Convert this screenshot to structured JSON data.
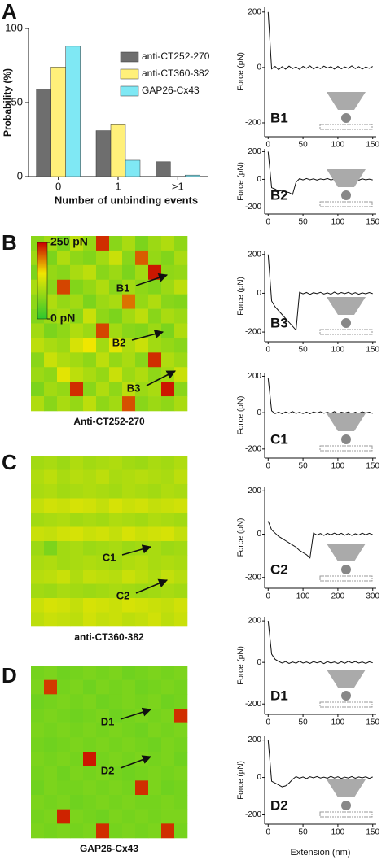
{
  "chart_data": [
    {
      "type": "bar",
      "panel": "A",
      "ylabel": "Probability (%)",
      "xlabel": "Number of unbinding events",
      "categories": [
        "0",
        "1",
        ">1"
      ],
      "ylim": [
        0,
        100
      ],
      "yticks": [
        0,
        50,
        100
      ],
      "series": [
        {
          "name": "anti-CT252-270",
          "color": "#6e6e6e",
          "values": [
            59,
            31,
            10
          ]
        },
        {
          "name": "anti-CT360-382",
          "color": "#fff07a",
          "values": [
            74,
            35,
            0
          ]
        },
        {
          "name": "GAP26-Cx43",
          "color": "#7fe8f4",
          "values": [
            88,
            11,
            1
          ]
        }
      ]
    },
    {
      "type": "heatmap",
      "panel": "B",
      "title": "Anti-CT252-270",
      "zlim": [
        0,
        250
      ],
      "colorbar": true,
      "zticks": [
        {
          "value": 250,
          "label": "250 pN"
        },
        {
          "value": 0,
          "label": "0 pN"
        }
      ],
      "annotations": [
        "B1",
        "B2",
        "B3"
      ],
      "z": [
        [
          70,
          90,
          60,
          110,
          80,
          230,
          70,
          95,
          60,
          85,
          100,
          75
        ],
        [
          85,
          60,
          100,
          75,
          65,
          90,
          120,
          70,
          210,
          80,
          65,
          95
        ],
        [
          60,
          80,
          70,
          95,
          110,
          70,
          85,
          60,
          90,
          240,
          75,
          80
        ],
        [
          95,
          70,
          220,
          65,
          80,
          100,
          70,
          90,
          75,
          65,
          85,
          110
        ],
        [
          75,
          100,
          80,
          90,
          60,
          85,
          95,
          200,
          80,
          100,
          70,
          65
        ],
        [
          65,
          85,
          95,
          70,
          120,
          75,
          60,
          90,
          110,
          70,
          95,
          85
        ],
        [
          90,
          60,
          75,
          100,
          85,
          220,
          90,
          70,
          65,
          85,
          60,
          100
        ],
        [
          110,
          95,
          85,
          130,
          150,
          90,
          140,
          100,
          120,
          90,
          80,
          70
        ],
        [
          70,
          120,
          100,
          90,
          75,
          110,
          80,
          95,
          70,
          230,
          100,
          85
        ],
        [
          85,
          75,
          140,
          110,
          95,
          80,
          120,
          85,
          100,
          75,
          90,
          120
        ],
        [
          60,
          90,
          80,
          230,
          70,
          100,
          75,
          110,
          85,
          95,
          240,
          70
        ],
        [
          100,
          70,
          95,
          80,
          110,
          75,
          90,
          215,
          70,
          85,
          75,
          95
        ]
      ]
    },
    {
      "type": "heatmap",
      "panel": "C",
      "title": "anti-CT360-382",
      "zlim": [
        0,
        250
      ],
      "colorbar": false,
      "annotations": [
        "C1",
        "C2"
      ],
      "z": [
        [
          90,
          95,
          85,
          100,
          90,
          95,
          100,
          90,
          85,
          95,
          90,
          100
        ],
        [
          100,
          110,
          95,
          105,
          100,
          110,
          95,
          100,
          105,
          100,
          95,
          110
        ],
        [
          95,
          100,
          90,
          95,
          100,
          95,
          90,
          100,
          95,
          90,
          100,
          95
        ],
        [
          115,
          125,
          120,
          130,
          125,
          115,
          130,
          120,
          125,
          115,
          120,
          125
        ],
        [
          90,
          95,
          100,
          90,
          95,
          90,
          100,
          95,
          90,
          100,
          95,
          90
        ],
        [
          120,
          115,
          125,
          130,
          120,
          125,
          115,
          130,
          120,
          125,
          130,
          115
        ],
        [
          85,
          60,
          90,
          95,
          85,
          90,
          95,
          85,
          90,
          95,
          85,
          90
        ],
        [
          95,
          100,
          90,
          95,
          100,
          95,
          90,
          100,
          105,
          95,
          100,
          95
        ],
        [
          105,
          110,
          120,
          100,
          115,
          110,
          105,
          120,
          110,
          100,
          115,
          105
        ],
        [
          90,
          85,
          95,
          90,
          85,
          90,
          95,
          90,
          85,
          90,
          95,
          90
        ],
        [
          120,
          130,
          125,
          115,
          130,
          125,
          120,
          130,
          125,
          120,
          115,
          125
        ],
        [
          110,
          120,
          115,
          110,
          125,
          115,
          120,
          110,
          115,
          125,
          110,
          120
        ]
      ]
    },
    {
      "type": "heatmap",
      "panel": "D",
      "title": "GAP26-Cx43",
      "zlim": [
        0,
        250
      ],
      "colorbar": false,
      "annotations": [
        "D1",
        "D2"
      ],
      "z": [
        [
          55,
          60,
          50,
          55,
          60,
          55,
          60,
          50,
          55,
          60,
          55,
          60
        ],
        [
          60,
          225,
          55,
          60,
          50,
          60,
          55,
          60,
          50,
          55,
          60,
          55
        ],
        [
          50,
          55,
          60,
          55,
          60,
          50,
          55,
          60,
          55,
          60,
          50,
          55
        ],
        [
          55,
          60,
          55,
          50,
          55,
          60,
          50,
          55,
          60,
          55,
          60,
          230
        ],
        [
          60,
          55,
          60,
          55,
          60,
          55,
          60,
          55,
          50,
          60,
          55,
          60
        ],
        [
          55,
          50,
          55,
          60,
          55,
          60,
          55,
          60,
          55,
          50,
          60,
          55
        ],
        [
          60,
          55,
          60,
          55,
          240,
          55,
          60,
          55,
          60,
          55,
          60,
          50
        ],
        [
          55,
          60,
          50,
          60,
          55,
          60,
          55,
          50,
          55,
          60,
          55,
          60
        ],
        [
          50,
          60,
          55,
          55,
          60,
          55,
          60,
          55,
          230,
          60,
          50,
          55
        ],
        [
          60,
          55,
          60,
          50,
          55,
          60,
          55,
          60,
          55,
          55,
          60,
          55
        ],
        [
          55,
          60,
          235,
          60,
          55,
          50,
          60,
          55,
          60,
          55,
          60,
          60
        ],
        [
          60,
          55,
          60,
          55,
          60,
          230,
          55,
          60,
          55,
          60,
          230,
          55
        ]
      ]
    },
    {
      "type": "line",
      "label": "B1",
      "ylabel": "Force (pN)",
      "xlim": [
        -5,
        155
      ],
      "xticks": [
        0,
        50,
        100,
        150
      ],
      "ylim": [
        -250,
        220
      ],
      "yticks": [
        -200,
        0,
        200
      ],
      "color": "#111",
      "x": [
        0,
        5,
        10,
        15,
        20,
        25,
        30,
        35,
        40,
        45,
        50,
        55,
        60,
        65,
        70,
        75,
        80,
        85,
        90,
        95,
        100,
        105,
        110,
        115,
        120,
        125,
        130,
        135,
        140,
        145,
        150
      ],
      "values": [
        200,
        -5,
        4,
        -8,
        3,
        -6,
        5,
        -4,
        2,
        -7,
        4,
        -3,
        6,
        -5,
        2,
        -4,
        5,
        -2,
        3,
        -6,
        4,
        -5,
        2,
        -3,
        6,
        -4,
        3,
        -6,
        2,
        -3,
        4
      ]
    },
    {
      "type": "line",
      "label": "B2",
      "ylabel": "Force (pN)",
      "xlim": [
        -5,
        155
      ],
      "xticks": [
        0,
        50,
        100,
        150
      ],
      "ylim": [
        -250,
        220
      ],
      "yticks": [
        -200,
        0,
        200
      ],
      "color": "#111",
      "x": [
        0,
        5,
        10,
        15,
        20,
        25,
        30,
        35,
        40,
        45,
        50,
        55,
        60,
        65,
        70,
        75,
        80,
        85,
        90,
        95,
        100,
        105,
        110,
        115,
        120,
        125,
        130,
        135,
        140,
        145,
        150
      ],
      "values": [
        200,
        -60,
        -70,
        -85,
        -80,
        -90,
        -95,
        -110,
        -20,
        5,
        -4,
        6,
        -3,
        4,
        -5,
        3,
        -2,
        6,
        -4,
        2,
        -5,
        4,
        -3,
        5,
        -2,
        3,
        -6,
        4,
        -3,
        2,
        -4
      ]
    },
    {
      "type": "line",
      "label": "B3",
      "ylabel": "Force (pN)",
      "xlim": [
        -5,
        155
      ],
      "xticks": [
        0,
        50,
        100,
        150
      ],
      "ylim": [
        -250,
        220
      ],
      "yticks": [
        -200,
        0,
        200
      ],
      "color": "#111",
      "x": [
        0,
        5,
        10,
        15,
        20,
        25,
        30,
        35,
        40,
        45,
        50,
        55,
        60,
        65,
        70,
        75,
        80,
        85,
        90,
        95,
        100,
        105,
        110,
        115,
        120,
        125,
        130,
        135,
        140,
        145,
        150
      ],
      "values": [
        200,
        -40,
        -70,
        -90,
        -110,
        -130,
        -150,
        -170,
        -190,
        5,
        -3,
        4,
        -6,
        3,
        -2,
        5,
        -4,
        2,
        -5,
        6,
        -3,
        4,
        -2,
        5,
        -4,
        3,
        -5,
        2,
        -3,
        4,
        -2
      ]
    },
    {
      "type": "line",
      "label": "C1",
      "ylabel": "Force (pN)",
      "xlim": [
        -5,
        155
      ],
      "xticks": [
        0,
        50,
        100,
        150
      ],
      "ylim": [
        -250,
        220
      ],
      "yticks": [
        -200,
        0,
        200
      ],
      "color": "#111",
      "x": [
        0,
        5,
        10,
        15,
        20,
        25,
        30,
        35,
        40,
        45,
        50,
        55,
        60,
        65,
        70,
        75,
        80,
        85,
        90,
        95,
        100,
        105,
        110,
        115,
        120,
        125,
        130,
        135,
        140,
        145,
        150
      ],
      "values": [
        190,
        10,
        -5,
        3,
        -6,
        4,
        -3,
        6,
        -4,
        2,
        -5,
        3,
        -6,
        4,
        -2,
        5,
        -3,
        2,
        -4,
        6,
        -5,
        3,
        -2,
        4,
        -6,
        3,
        -4,
        5,
        -2,
        3,
        -4
      ]
    },
    {
      "type": "line",
      "label": "C2",
      "ylabel": "Force (pN)",
      "xlim": [
        -10,
        310
      ],
      "xticks": [
        0,
        100,
        200,
        300
      ],
      "ylim": [
        -250,
        220
      ],
      "yticks": [
        -200,
        0,
        200
      ],
      "color": "#111",
      "x": [
        0,
        10,
        20,
        30,
        40,
        50,
        60,
        70,
        80,
        90,
        100,
        110,
        120,
        130,
        140,
        150,
        160,
        170,
        180,
        190,
        200,
        210,
        220,
        230,
        240,
        250,
        260,
        270,
        280,
        290,
        300
      ],
      "values": [
        60,
        20,
        5,
        -10,
        -20,
        -30,
        -40,
        -50,
        -60,
        -75,
        -85,
        -95,
        -110,
        5,
        -4,
        3,
        -6,
        4,
        -3,
        5,
        -2,
        4,
        -5,
        3,
        -6,
        2,
        -4,
        5,
        -3,
        4,
        -2
      ]
    },
    {
      "type": "line",
      "label": "D1",
      "ylabel": "Force (pN)",
      "xlim": [
        -5,
        155
      ],
      "xticks": [
        0,
        50,
        100,
        150
      ],
      "ylim": [
        -250,
        220
      ],
      "yticks": [
        -200,
        0,
        200
      ],
      "color": "#111",
      "x": [
        0,
        5,
        10,
        15,
        20,
        25,
        30,
        35,
        40,
        45,
        50,
        55,
        60,
        65,
        70,
        75,
        80,
        85,
        90,
        95,
        100,
        105,
        110,
        115,
        120,
        125,
        130,
        135,
        140,
        145,
        150
      ],
      "values": [
        200,
        40,
        15,
        5,
        -3,
        4,
        -5,
        2,
        -4,
        6,
        -3,
        2,
        -5,
        4,
        -2,
        3,
        -6,
        4,
        -3,
        2,
        -5,
        3,
        -4,
        5,
        -2,
        4,
        -3,
        2,
        -5,
        3,
        -2
      ]
    },
    {
      "type": "line",
      "label": "D2",
      "ylabel": "Force (pN)",
      "xlabel": "Extension (nm)",
      "xlim": [
        -5,
        155
      ],
      "xticks": [
        0,
        50,
        100,
        150
      ],
      "ylim": [
        -250,
        220
      ],
      "yticks": [
        -200,
        0,
        200
      ],
      "color": "#111",
      "x": [
        0,
        5,
        10,
        15,
        20,
        25,
        30,
        35,
        40,
        45,
        50,
        55,
        60,
        65,
        70,
        75,
        80,
        85,
        90,
        95,
        100,
        105,
        110,
        115,
        120,
        125,
        130,
        135,
        140,
        145,
        150
      ],
      "values": [
        200,
        -20,
        -30,
        -40,
        -50,
        -45,
        -30,
        -10,
        5,
        -4,
        3,
        -6,
        4,
        -2,
        5,
        -3,
        2,
        -4,
        6,
        -3,
        4,
        -5,
        2,
        -3,
        5,
        -4,
        3,
        -2,
        4,
        -5,
        3
      ]
    }
  ]
}
